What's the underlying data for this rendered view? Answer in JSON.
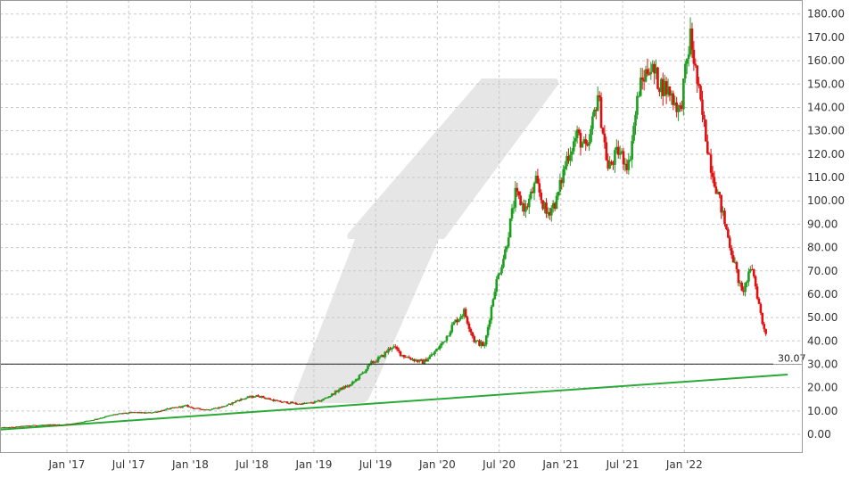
{
  "chart_data": {
    "type": "candlestick",
    "ylim": [
      -8,
      186
    ],
    "y_ticks": [
      "0.00",
      "10.00",
      "20.00",
      "30.00",
      "40.00",
      "50.00",
      "60.00",
      "70.00",
      "80.00",
      "90.00",
      "100.00",
      "110.00",
      "120.00",
      "130.00",
      "140.00",
      "150.00",
      "160.00",
      "170.00",
      "180.00"
    ],
    "x_ticks": [
      "Jan '17",
      "Jul '17",
      "Jan '18",
      "Jul '18",
      "Jan '19",
      "Jul '19",
      "Jan '20",
      "Jul '20",
      "Jan '21",
      "Jul '21",
      "Jan '22"
    ],
    "x_range": [
      "2016-07",
      "2022-12"
    ],
    "grid": true,
    "last_price": {
      "value": 30.07,
      "label": "30.07"
    },
    "trendline": {
      "start": [
        "2016-07",
        2.0
      ],
      "end": [
        "2022-10",
        25.6
      ],
      "color": "#2aa838"
    },
    "up_color": "#1e9e1e",
    "down_color": "#e01010",
    "series": [
      {
        "values": [
          [
            "2016-07",
            2.8
          ],
          [
            "2016-08",
            3.0
          ],
          [
            "2016-09",
            3.4
          ],
          [
            "2016-10",
            3.8
          ],
          [
            "2016-11",
            4.0
          ],
          [
            "2016-12",
            4.1
          ],
          [
            "2017-01",
            4.0
          ],
          [
            "2017-02",
            4.6
          ],
          [
            "2017-03",
            5.4
          ],
          [
            "2017-04",
            6.3
          ],
          [
            "2017-05",
            7.4
          ],
          [
            "2017-06",
            8.5
          ],
          [
            "2017-07",
            9.0
          ],
          [
            "2017-08",
            9.4
          ],
          [
            "2017-09",
            9.1
          ],
          [
            "2017-10",
            9.6
          ],
          [
            "2017-11",
            10.6
          ],
          [
            "2017-12",
            11.5
          ],
          [
            "2018-01",
            12.2
          ],
          [
            "2018-02",
            11.0
          ],
          [
            "2018-03",
            10.6
          ],
          [
            "2018-04",
            11.3
          ],
          [
            "2018-05",
            12.4
          ],
          [
            "2018-06",
            14.6
          ],
          [
            "2018-07",
            15.8
          ],
          [
            "2018-08",
            16.5
          ],
          [
            "2018-09",
            15.2
          ],
          [
            "2018-10",
            14.0
          ],
          [
            "2018-11",
            13.6
          ],
          [
            "2018-12",
            13.0
          ],
          [
            "2019-01",
            13.4
          ],
          [
            "2019-02",
            14.3
          ],
          [
            "2019-03",
            16.6
          ],
          [
            "2019-04",
            19.5
          ],
          [
            "2019-05",
            21.2
          ],
          [
            "2019-06",
            25.6
          ],
          [
            "2019-07",
            30.5
          ],
          [
            "2019-08",
            33.2
          ],
          [
            "2019-09",
            37.8
          ],
          [
            "2019-10",
            34.0
          ],
          [
            "2019-11",
            32.2
          ],
          [
            "2019-12",
            30.8
          ],
          [
            "2020-01",
            34.4
          ],
          [
            "2020-02",
            39.6
          ],
          [
            "2020-03",
            47.5
          ],
          [
            "2020-04",
            52.6
          ],
          [
            "2020-05",
            40.2
          ],
          [
            "2020-06",
            37.8
          ],
          [
            "2020-07",
            62.8
          ],
          [
            "2020-08",
            78.5
          ],
          [
            "2020-09",
            102.6
          ],
          [
            "2020-10",
            96.4
          ],
          [
            "2020-11",
            107.8
          ],
          [
            "2020-12",
            94.3
          ],
          [
            "2021-01",
            100.2
          ],
          [
            "2021-02",
            118.5
          ],
          [
            "2021-03",
            128.3
          ],
          [
            "2021-04",
            120.6
          ],
          [
            "2021-05",
            146.2
          ],
          [
            "2021-06",
            113.5
          ],
          [
            "2021-07",
            121.2
          ],
          [
            "2021-08",
            115.3
          ],
          [
            "2021-09",
            147.8
          ],
          [
            "2021-10",
            158.2
          ],
          [
            "2021-11",
            150.4
          ],
          [
            "2021-12",
            146.6
          ],
          [
            "2022-01",
            138.2
          ],
          [
            "2022-02",
            170.5
          ],
          [
            "2022-03",
            140.6
          ],
          [
            "2022-04",
            115.2
          ],
          [
            "2022-05",
            96.8
          ],
          [
            "2022-06",
            78.2
          ],
          [
            "2022-07",
            60.4
          ],
          [
            "2022-08",
            71.5
          ],
          [
            "2022-09",
            47.6
          ],
          [
            "2022-10",
            36.2
          ],
          [
            "2022-11",
            33.8
          ],
          [
            "2022-12",
            30.07
          ]
        ]
      }
    ]
  }
}
